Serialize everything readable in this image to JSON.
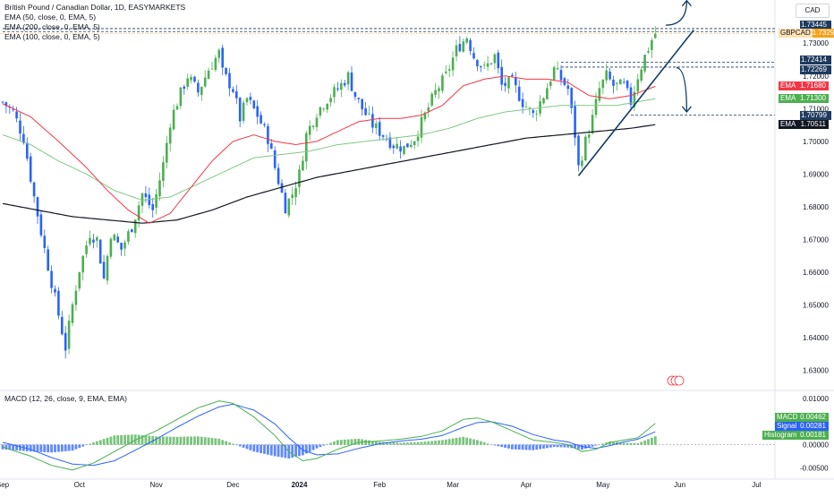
{
  "header": {
    "symbol_line": "British Pound / Canadian Dollar, 1D, EASYMARKETS",
    "ema_lines": [
      "EMA (50, close, 0, EMA, 5)",
      "EMA (200, close, 0, EMA, 5)",
      "EMA (100, close, 0, EMA, 5)"
    ],
    "currency": "CAD"
  },
  "macd_header": "MACD (12, 26, close, 9, EMA, EMA)",
  "colors": {
    "up": "#26a69a",
    "up_candle": "#4caf50",
    "down": "#2962ff",
    "ema50": "#f23645",
    "ema100": "#81c784",
    "ema200": "#131722",
    "macd": "#4caf50",
    "signal": "#2962ff",
    "hist_pos": "#4caf50",
    "hist_neg": "#2962ff",
    "trendline": "#0d3b66",
    "level": "#1e3a5f",
    "current": "#f7a21b"
  },
  "price_labels": [
    {
      "text": "1.73445",
      "color": "#1e3a5f"
    },
    {
      "text": "1.73354",
      "color": "#1e3a5f"
    },
    {
      "text": "1.72414",
      "color": "#1e3a5f"
    },
    {
      "text": "1.72269",
      "color": "#1e3a5f"
    },
    {
      "text": "1.70799",
      "color": "#1e3a5f"
    }
  ],
  "price_tags": [
    {
      "tag": "GBPCAD",
      "value": "1.73295",
      "color": "#f7a21b",
      "price": 1.73295
    },
    {
      "tag": "EMA",
      "value": "1.71680",
      "color": "#f23645",
      "price": 1.7168
    },
    {
      "tag": "EMA",
      "value": "1.71300",
      "color": "#4caf50",
      "price": 1.713
    },
    {
      "tag": "EMA",
      "value": "1.70511",
      "color": "#131722",
      "price": 1.70511
    }
  ],
  "macd_tags": [
    {
      "tag": "MACD",
      "value": "0.00462",
      "color": "#4caf50",
      "v": 0.00462
    },
    {
      "tag": "Signal",
      "value": "0.00281",
      "color": "#2962ff",
      "v": 0.00281
    },
    {
      "tag": "Histogram",
      "value": "0.00181",
      "color": "#4caf50",
      "v": 0.00181
    }
  ],
  "chart_data": {
    "type": "candlestick",
    "price_axis": {
      "ticks": [
        "1.73000",
        "1.72000",
        "1.71000",
        "1.70000",
        "1.69000",
        "1.68000",
        "1.67000",
        "1.66000",
        "1.65000",
        "1.64000",
        "1.63000"
      ],
      "ylim": [
        1.625,
        1.741
      ]
    },
    "macd_axis": {
      "ticks": [
        "0.01000",
        "0.00500",
        "0.00000",
        "-0.00500"
      ],
      "ylim": [
        -0.0065,
        0.011
      ]
    },
    "x_axis": {
      "labels": [
        "Sep",
        "Oct",
        "Nov",
        "Dec",
        "2024",
        "Feb",
        "Mar",
        "Apr",
        "May",
        "Jun",
        "Jul"
      ],
      "label_bars": [
        0,
        22,
        44,
        66,
        85,
        108,
        129,
        150,
        172,
        194,
        216
      ]
    },
    "levels": [
      1.73445,
      1.73354,
      1.72414,
      1.72269,
      1.70799
    ],
    "trendline": {
      "from": {
        "bar": 165,
        "price": 1.6895
      },
      "to": {
        "bar": 198,
        "price": 1.734
      }
    },
    "arrows": [
      {
        "direction": "up",
        "bar_from": 190,
        "price_from": 1.7355,
        "bar_to": 196,
        "price_to": 1.743
      },
      {
        "direction": "down",
        "bar_from": 193,
        "price_from": 1.7225,
        "bar_to": 196,
        "price_to": 1.709
      }
    ],
    "close_anchors": [
      [
        0,
        1.712
      ],
      [
        3,
        1.709
      ],
      [
        6,
        1.701
      ],
      [
        9,
        1.683
      ],
      [
        12,
        1.667
      ],
      [
        15,
        1.652
      ],
      [
        18,
        1.637
      ],
      [
        20,
        1.65
      ],
      [
        22,
        1.661
      ],
      [
        25,
        1.672
      ],
      [
        27,
        1.67
      ],
      [
        29,
        1.658
      ],
      [
        31,
        1.672
      ],
      [
        34,
        1.667
      ],
      [
        37,
        1.674
      ],
      [
        40,
        1.684
      ],
      [
        43,
        1.679
      ],
      [
        46,
        1.693
      ],
      [
        48,
        1.706
      ],
      [
        50,
        1.712
      ],
      [
        53,
        1.72
      ],
      [
        56,
        1.715
      ],
      [
        59,
        1.722
      ],
      [
        62,
        1.727
      ],
      [
        63,
        1.721
      ],
      [
        66,
        1.716
      ],
      [
        68,
        1.707
      ],
      [
        70,
        1.713
      ],
      [
        73,
        1.708
      ],
      [
        76,
        1.701
      ],
      [
        78,
        1.692
      ],
      [
        81,
        1.68
      ],
      [
        83,
        1.684
      ],
      [
        85,
        1.69
      ],
      [
        87,
        1.702
      ],
      [
        90,
        1.709
      ],
      [
        93,
        1.713
      ],
      [
        96,
        1.716
      ],
      [
        99,
        1.72
      ],
      [
        101,
        1.714
      ],
      [
        103,
        1.71
      ],
      [
        106,
        1.705
      ],
      [
        109,
        1.702
      ],
      [
        112,
        1.699
      ],
      [
        115,
        1.698
      ],
      [
        118,
        1.701
      ],
      [
        121,
        1.708
      ],
      [
        124,
        1.715
      ],
      [
        127,
        1.72
      ],
      [
        130,
        1.728
      ],
      [
        133,
        1.732
      ],
      [
        135,
        1.726
      ],
      [
        138,
        1.722
      ],
      [
        141,
        1.726
      ],
      [
        143,
        1.717
      ],
      [
        146,
        1.718
      ],
      [
        149,
        1.712
      ],
      [
        152,
        1.708
      ],
      [
        155,
        1.714
      ],
      [
        158,
        1.722
      ],
      [
        160,
        1.719
      ],
      [
        162,
        1.716
      ],
      [
        164,
        1.702
      ],
      [
        165,
        1.692
      ],
      [
        167,
        1.7
      ],
      [
        169,
        1.707
      ],
      [
        171,
        1.716
      ],
      [
        173,
        1.72
      ],
      [
        175,
        1.717
      ],
      [
        178,
        1.717
      ],
      [
        180,
        1.712
      ],
      [
        182,
        1.72
      ],
      [
        184,
        1.726
      ],
      [
        186,
        1.731
      ],
      [
        187,
        1.733
      ]
    ],
    "ema50_anchors": [
      [
        0,
        1.7115
      ],
      [
        8,
        1.7075
      ],
      [
        16,
        1.7
      ],
      [
        24,
        1.692
      ],
      [
        30,
        1.685
      ],
      [
        36,
        1.679
      ],
      [
        42,
        1.675
      ],
      [
        48,
        1.678
      ],
      [
        54,
        1.686
      ],
      [
        60,
        1.694
      ],
      [
        66,
        1.7
      ],
      [
        72,
        1.702
      ],
      [
        78,
        1.7
      ],
      [
        84,
        1.699
      ],
      [
        90,
        1.7
      ],
      [
        96,
        1.703
      ],
      [
        102,
        1.706
      ],
      [
        108,
        1.707
      ],
      [
        114,
        1.707
      ],
      [
        120,
        1.708
      ],
      [
        126,
        1.711
      ],
      [
        132,
        1.717
      ],
      [
        138,
        1.719
      ],
      [
        144,
        1.72
      ],
      [
        150,
        1.719
      ],
      [
        156,
        1.719
      ],
      [
        162,
        1.718
      ],
      [
        168,
        1.714
      ],
      [
        174,
        1.713
      ],
      [
        180,
        1.714
      ],
      [
        187,
        1.7168
      ]
    ],
    "ema100_anchors": [
      [
        0,
        1.702
      ],
      [
        8,
        1.699
      ],
      [
        16,
        1.694
      ],
      [
        24,
        1.69
      ],
      [
        32,
        1.685
      ],
      [
        40,
        1.682
      ],
      [
        48,
        1.683
      ],
      [
        56,
        1.687
      ],
      [
        64,
        1.691
      ],
      [
        72,
        1.695
      ],
      [
        80,
        1.696
      ],
      [
        88,
        1.697
      ],
      [
        96,
        1.699
      ],
      [
        104,
        1.7
      ],
      [
        112,
        1.701
      ],
      [
        120,
        1.702
      ],
      [
        128,
        1.704
      ],
      [
        136,
        1.707
      ],
      [
        144,
        1.709
      ],
      [
        152,
        1.71
      ],
      [
        160,
        1.711
      ],
      [
        168,
        1.711
      ],
      [
        176,
        1.711
      ],
      [
        187,
        1.713
      ]
    ],
    "ema200_anchors": [
      [
        0,
        1.681
      ],
      [
        10,
        1.679
      ],
      [
        20,
        1.677
      ],
      [
        30,
        1.676
      ],
      [
        40,
        1.675
      ],
      [
        50,
        1.676
      ],
      [
        60,
        1.679
      ],
      [
        70,
        1.683
      ],
      [
        80,
        1.686
      ],
      [
        90,
        1.689
      ],
      [
        100,
        1.691
      ],
      [
        110,
        1.693
      ],
      [
        120,
        1.695
      ],
      [
        130,
        1.697
      ],
      [
        140,
        1.699
      ],
      [
        150,
        1.701
      ],
      [
        160,
        1.702
      ],
      [
        170,
        1.703
      ],
      [
        180,
        1.704
      ],
      [
        187,
        1.7051
      ]
    ],
    "macd_anchors": [
      [
        0,
        -0.0005
      ],
      [
        8,
        -0.0025
      ],
      [
        14,
        -0.0045
      ],
      [
        20,
        -0.0055
      ],
      [
        26,
        -0.004
      ],
      [
        32,
        -0.0015
      ],
      [
        38,
        0.001
      ],
      [
        44,
        0.003
      ],
      [
        50,
        0.0055
      ],
      [
        56,
        0.008
      ],
      [
        62,
        0.0095
      ],
      [
        66,
        0.009
      ],
      [
        72,
        0.006
      ],
      [
        78,
        0.002
      ],
      [
        82,
        -0.0015
      ],
      [
        86,
        -0.0035
      ],
      [
        90,
        -0.003
      ],
      [
        96,
        -0.001
      ],
      [
        102,
        0.0005
      ],
      [
        108,
        0.0008
      ],
      [
        114,
        0.0012
      ],
      [
        120,
        0.0018
      ],
      [
        126,
        0.003
      ],
      [
        132,
        0.0055
      ],
      [
        136,
        0.0058
      ],
      [
        140,
        0.005
      ],
      [
        146,
        0.003
      ],
      [
        152,
        0.001
      ],
      [
        158,
        0.0005
      ],
      [
        162,
        0.0
      ],
      [
        166,
        -0.0015
      ],
      [
        170,
        -0.001
      ],
      [
        174,
        0.0005
      ],
      [
        178,
        0.001
      ],
      [
        182,
        0.0015
      ],
      [
        187,
        0.00462
      ]
    ],
    "signal_anchors": [
      [
        0,
        0.0005
      ],
      [
        8,
        -0.001
      ],
      [
        14,
        -0.0028
      ],
      [
        20,
        -0.0042
      ],
      [
        26,
        -0.0045
      ],
      [
        32,
        -0.0035
      ],
      [
        38,
        -0.0012
      ],
      [
        44,
        0.0012
      ],
      [
        50,
        0.0038
      ],
      [
        56,
        0.0062
      ],
      [
        62,
        0.0082
      ],
      [
        66,
        0.0088
      ],
      [
        72,
        0.0075
      ],
      [
        78,
        0.0045
      ],
      [
        82,
        0.0015
      ],
      [
        86,
        -0.0012
      ],
      [
        90,
        -0.0022
      ],
      [
        96,
        -0.002
      ],
      [
        102,
        -0.0008
      ],
      [
        108,
        0.0002
      ],
      [
        114,
        0.0008
      ],
      [
        120,
        0.0012
      ],
      [
        126,
        0.002
      ],
      [
        132,
        0.0038
      ],
      [
        136,
        0.0048
      ],
      [
        140,
        0.005
      ],
      [
        146,
        0.004
      ],
      [
        152,
        0.0022
      ],
      [
        158,
        0.001
      ],
      [
        162,
        0.0006
      ],
      [
        166,
        -0.0004
      ],
      [
        170,
        -0.0008
      ],
      [
        174,
        -0.0002
      ],
      [
        178,
        0.0006
      ],
      [
        182,
        0.0012
      ],
      [
        187,
        0.00281
      ]
    ]
  }
}
